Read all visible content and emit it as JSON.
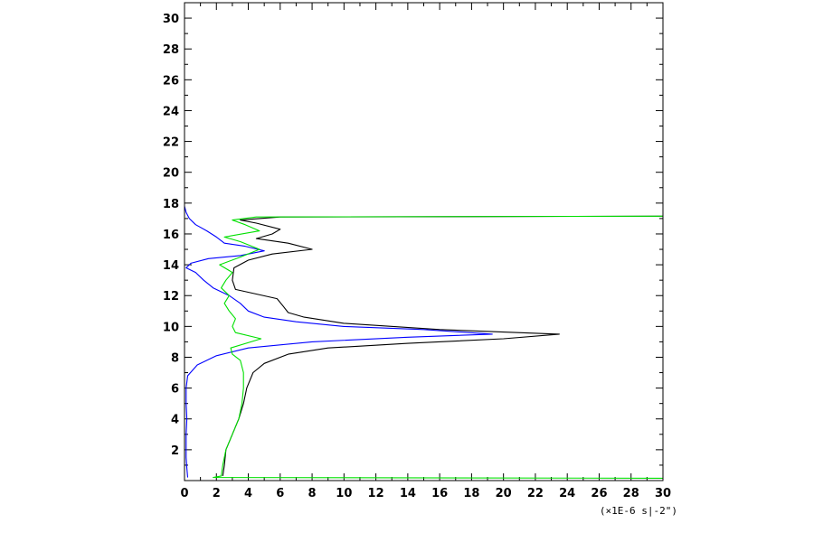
{
  "chart_data": {
    "type": "line",
    "title": "",
    "xlabel": "",
    "ylabel": "",
    "x_unit_note": "(×1E-6 s|-2\")",
    "xlim": [
      0,
      30
    ],
    "ylim": [
      0,
      31
    ],
    "x_major_ticks": [
      0,
      2,
      4,
      6,
      8,
      10,
      12,
      14,
      16,
      18,
      20,
      22,
      24,
      26,
      28,
      30
    ],
    "y_major_ticks": [
      2,
      4,
      6,
      8,
      10,
      12,
      14,
      16,
      18,
      20,
      22,
      24,
      26,
      28,
      30
    ],
    "x_tick_labels": [
      "0",
      "2",
      "4",
      "6",
      "8",
      "10",
      "12",
      "14",
      "16",
      "18",
      "20",
      "22",
      "24",
      "26",
      "28",
      "30"
    ],
    "y_tick_labels": [
      "2",
      "4",
      "6",
      "8",
      "10",
      "12",
      "14",
      "16",
      "18",
      "20",
      "22",
      "24",
      "26",
      "28",
      "30"
    ],
    "grid": false,
    "series": [
      {
        "color": "#000000",
        "points": [
          [
            2.4,
            0.3
          ],
          [
            2.5,
            1.0
          ],
          [
            2.6,
            2.0
          ],
          [
            3.0,
            3.0
          ],
          [
            3.4,
            4.0
          ],
          [
            3.7,
            5.0
          ],
          [
            3.9,
            6.0
          ],
          [
            4.3,
            7.0
          ],
          [
            5.0,
            7.6
          ],
          [
            6.5,
            8.2
          ],
          [
            9.0,
            8.6
          ],
          [
            14.0,
            8.9
          ],
          [
            20.0,
            9.2
          ],
          [
            23.5,
            9.5
          ],
          [
            16.0,
            9.8
          ],
          [
            10.0,
            10.2
          ],
          [
            7.5,
            10.6
          ],
          [
            6.5,
            10.9
          ],
          [
            6.2,
            11.3
          ],
          [
            5.8,
            11.8
          ],
          [
            4.5,
            12.1
          ],
          [
            3.2,
            12.4
          ],
          [
            3.0,
            13.0
          ],
          [
            3.1,
            13.8
          ],
          [
            4.0,
            14.3
          ],
          [
            5.5,
            14.7
          ],
          [
            8.0,
            15.0
          ],
          [
            6.5,
            15.4
          ],
          [
            4.5,
            15.7
          ],
          [
            5.5,
            16.0
          ],
          [
            6.0,
            16.3
          ],
          [
            4.5,
            16.7
          ],
          [
            3.5,
            16.9
          ],
          [
            6.0,
            17.1
          ],
          [
            30.0,
            17.15
          ]
        ]
      },
      {
        "color": "#0000ff",
        "points": [
          [
            0.2,
            0.2
          ],
          [
            0.15,
            0.8
          ],
          [
            0.1,
            1.5
          ],
          [
            0.1,
            3.0
          ],
          [
            0.15,
            4.0
          ],
          [
            0.1,
            5.0
          ],
          [
            0.1,
            6.0
          ],
          [
            0.2,
            6.8
          ],
          [
            0.8,
            7.5
          ],
          [
            2.0,
            8.1
          ],
          [
            4.0,
            8.6
          ],
          [
            8.0,
            9.0
          ],
          [
            14.0,
            9.3
          ],
          [
            19.3,
            9.5
          ],
          [
            15.0,
            9.8
          ],
          [
            10.0,
            10.0
          ],
          [
            7.0,
            10.3
          ],
          [
            5.0,
            10.6
          ],
          [
            4.0,
            11.0
          ],
          [
            3.5,
            11.5
          ],
          [
            2.8,
            12.0
          ],
          [
            1.8,
            12.5
          ],
          [
            1.2,
            13.0
          ],
          [
            0.7,
            13.5
          ],
          [
            0.1,
            13.8
          ],
          [
            0.4,
            14.1
          ],
          [
            1.5,
            14.4
          ],
          [
            3.5,
            14.6
          ],
          [
            5.0,
            14.9
          ],
          [
            3.8,
            15.2
          ],
          [
            2.5,
            15.4
          ],
          [
            2.0,
            15.8
          ],
          [
            1.4,
            16.2
          ],
          [
            0.7,
            16.6
          ],
          [
            0.3,
            17.0
          ],
          [
            0.1,
            17.4
          ],
          [
            0.0,
            17.8
          ]
        ]
      },
      {
        "color": "#00e000",
        "points": [
          [
            30.0,
            0.15
          ],
          [
            1.8,
            0.2
          ],
          [
            2.3,
            0.3
          ],
          [
            2.4,
            1.0
          ],
          [
            2.6,
            2.0
          ],
          [
            3.0,
            3.0
          ],
          [
            3.4,
            4.0
          ],
          [
            3.6,
            5.0
          ],
          [
            3.7,
            6.0
          ],
          [
            3.7,
            7.0
          ],
          [
            3.5,
            7.8
          ],
          [
            3.0,
            8.2
          ],
          [
            2.9,
            8.6
          ],
          [
            4.8,
            9.2
          ],
          [
            3.2,
            9.6
          ],
          [
            3.0,
            10.0
          ],
          [
            3.2,
            10.5
          ],
          [
            2.8,
            11.0
          ],
          [
            2.5,
            11.5
          ],
          [
            2.8,
            12.0
          ],
          [
            2.3,
            12.5
          ],
          [
            2.6,
            13.0
          ],
          [
            3.0,
            13.5
          ],
          [
            2.2,
            14.0
          ],
          [
            3.5,
            14.5
          ],
          [
            4.7,
            15.0
          ],
          [
            3.5,
            15.5
          ],
          [
            2.5,
            15.8
          ],
          [
            4.7,
            16.2
          ],
          [
            3.8,
            16.6
          ],
          [
            3.0,
            16.9
          ],
          [
            4.5,
            17.1
          ],
          [
            30.0,
            17.15
          ]
        ]
      }
    ]
  }
}
